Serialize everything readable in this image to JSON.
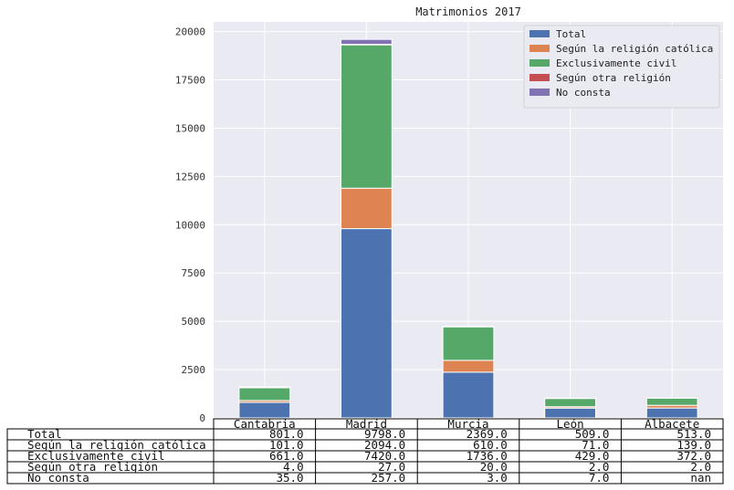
{
  "colors": {
    "background": "#eaeaf2",
    "grid": "#ffffff",
    "series": [
      "#4c72b0",
      "#dd8452",
      "#55a868",
      "#c44e52",
      "#8172b3"
    ]
  },
  "chart_data": {
    "type": "bar",
    "stacked": true,
    "title": "Matrimonios 2017",
    "xlabel": "",
    "ylabel": "",
    "categories": [
      "Cantabria",
      "Madrid",
      "Murcia",
      "León",
      "Albacete"
    ],
    "series": [
      {
        "name": "Total",
        "values": [
          801.0,
          9798.0,
          2369.0,
          509.0,
          513.0
        ],
        "labels": [
          "801.0",
          "9798.0",
          "2369.0",
          "509.0",
          "513.0"
        ]
      },
      {
        "name": "Según la religión católica",
        "values": [
          101.0,
          2094.0,
          610.0,
          71.0,
          139.0
        ],
        "labels": [
          "101.0",
          "2094.0",
          "610.0",
          "71.0",
          "139.0"
        ]
      },
      {
        "name": "Exclusivamente civil",
        "values": [
          661.0,
          7420.0,
          1736.0,
          429.0,
          372.0
        ],
        "labels": [
          "661.0",
          "7420.0",
          "1736.0",
          "429.0",
          "372.0"
        ]
      },
      {
        "name": "Según otra religión",
        "values": [
          4.0,
          27.0,
          20.0,
          2.0,
          2.0
        ],
        "labels": [
          "4.0",
          "27.0",
          "20.0",
          "2.0",
          "2.0"
        ]
      },
      {
        "name": "No consta",
        "values": [
          35.0,
          257.0,
          3.0,
          7.0,
          null
        ],
        "labels": [
          "35.0",
          "257.0",
          "3.0",
          "7.0",
          "nan"
        ]
      }
    ],
    "ylim": [
      0,
      20500
    ],
    "yticks": [
      0,
      2500,
      5000,
      7500,
      10000,
      12500,
      15000,
      17500,
      20000
    ],
    "grid": true,
    "legend": "top-right",
    "table_below": true
  }
}
